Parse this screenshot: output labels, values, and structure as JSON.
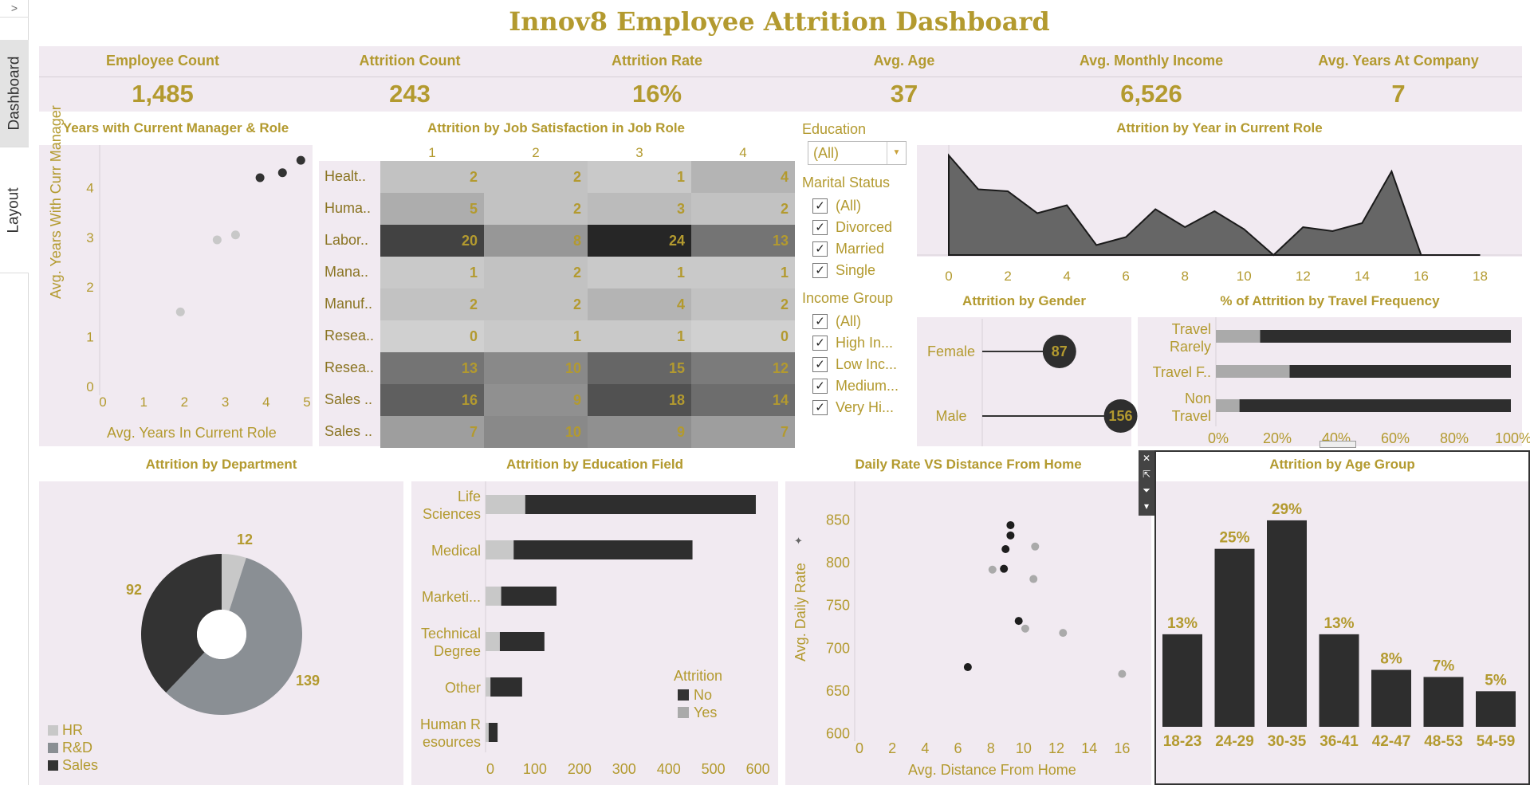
{
  "sidebar": {
    "toggle": ">",
    "tabs": [
      "Dashboard",
      "Layout"
    ]
  },
  "title": "Innov8 Employee Attrition Dashboard",
  "kpis": [
    {
      "label": "Employee Count",
      "value": "1,485"
    },
    {
      "label": "Attrition Count",
      "value": "243"
    },
    {
      "label": "Attrition Rate",
      "value": "16%"
    },
    {
      "label": "Avg. Age",
      "value": "37"
    },
    {
      "label": "Avg. Monthly Income",
      "value": "6,526"
    },
    {
      "label": "Avg. Years At Company",
      "value": "7"
    }
  ],
  "filters": {
    "education": {
      "title": "Education",
      "selected": "(All)"
    },
    "marital": {
      "title": "Marital Status",
      "options": [
        "(All)",
        "Divorced",
        "Married",
        "Single"
      ]
    },
    "income": {
      "title": "Income Group",
      "options": [
        "(All)",
        "High In...",
        "Low Inc...",
        "Medium...",
        "Very Hi..."
      ]
    }
  },
  "colors": {
    "dark": "#333333",
    "mid": "#8a8f94",
    "light": "#c8c8c8",
    "accent": "#b39a2f",
    "panel": "#f1eaf1"
  },
  "chart_data": [
    {
      "id": "manager_role",
      "type": "scatter",
      "title": "Years with Current Manager & Role",
      "xlabel": "Avg. Years In Current Role",
      "ylabel": "Avg. Years With Curr Manager",
      "xlim": [
        0,
        5
      ],
      "ylim": [
        0,
        4.6
      ],
      "xticks": [
        "0",
        "1",
        "2",
        "3",
        "4",
        "5"
      ],
      "yticks": [
        "0",
        "1",
        "2",
        "3",
        "4"
      ],
      "points": [
        {
          "x": 1.9,
          "y": 1.5,
          "shade": "light"
        },
        {
          "x": 2.8,
          "y": 2.95,
          "shade": "light"
        },
        {
          "x": 3.25,
          "y": 3.05,
          "shade": "light"
        },
        {
          "x": 3.85,
          "y": 4.2,
          "shade": "dark"
        },
        {
          "x": 4.4,
          "y": 4.3,
          "shade": "dark"
        },
        {
          "x": 4.85,
          "y": 4.55,
          "shade": "dark"
        }
      ]
    },
    {
      "id": "job_satisfaction",
      "type": "heatmap",
      "title": "Attrition by Job Satisfaction in Job Role",
      "columns": [
        "1",
        "2",
        "3",
        "4"
      ],
      "rows": [
        "Healt..",
        "Huma..",
        "Labor..",
        "Mana..",
        "Manuf..",
        "Resea..",
        "Resea..",
        "Sales ..",
        "Sales .."
      ],
      "values": [
        [
          2,
          2,
          1,
          4
        ],
        [
          5,
          2,
          3,
          2
        ],
        [
          20,
          8,
          24,
          13
        ],
        [
          1,
          2,
          1,
          1
        ],
        [
          2,
          2,
          4,
          2
        ],
        [
          0,
          1,
          1,
          0
        ],
        [
          13,
          10,
          15,
          12
        ],
        [
          16,
          9,
          18,
          14
        ],
        [
          7,
          10,
          9,
          7
        ]
      ]
    },
    {
      "id": "current_role_year",
      "type": "area",
      "title": "Attrition by Year in Current Role",
      "xlim": [
        0,
        18.5
      ],
      "ylim": [
        0,
        52
      ],
      "xticks": [
        "0",
        "2",
        "4",
        "6",
        "8",
        "10",
        "12",
        "14",
        "16",
        "18"
      ],
      "x": [
        0,
        1,
        2,
        3,
        4,
        5,
        6,
        7,
        8,
        9,
        10,
        11,
        12,
        13,
        14,
        15,
        16,
        17,
        18
      ],
      "values": [
        50,
        33,
        32,
        21,
        25,
        5,
        9,
        23,
        14,
        22,
        13,
        0,
        14,
        12,
        16,
        42,
        0,
        0,
        0
      ]
    },
    {
      "id": "gender",
      "type": "bar",
      "title": "Attrition by Gender",
      "categories": [
        "Female",
        "Male"
      ],
      "values": [
        87,
        156
      ],
      "xlim": [
        0,
        160
      ]
    },
    {
      "id": "travel",
      "type": "bar",
      "title": "% of Attrition by Travel Frequency",
      "categories": [
        "Travel Rarely",
        "Travel F..",
        "Non Travel"
      ],
      "series": [
        {
          "name": "Yes",
          "values": [
            15,
            25,
            8
          ]
        },
        {
          "name": "No",
          "values": [
            85,
            75,
            92
          ]
        }
      ],
      "xticks": [
        "0%",
        "20%",
        "40%",
        "60%",
        "80%",
        "100%"
      ]
    },
    {
      "id": "department",
      "type": "pie",
      "title": "Attrition by Department",
      "categories": [
        "HR",
        "R&D",
        "Sales"
      ],
      "values": [
        12,
        139,
        92
      ],
      "legend": "bottom-left"
    },
    {
      "id": "education_field",
      "type": "bar",
      "title": "Attrition by Education Field",
      "categories": [
        "Life Sciences",
        "Medical",
        "Marketi...",
        "Technical Degree",
        "Other",
        "Human R esources"
      ],
      "series": [
        {
          "name": "Yes",
          "values": [
            89,
            63,
            35,
            32,
            11,
            7
          ]
        },
        {
          "name": "No",
          "values": [
            517,
            401,
            124,
            100,
            71,
            20
          ]
        }
      ],
      "xlim": [
        0,
        640
      ],
      "xticks": [
        "0",
        "100",
        "200",
        "300",
        "400",
        "500",
        "600"
      ],
      "legend_title": "Attrition",
      "legend": [
        "No",
        "Yes"
      ]
    },
    {
      "id": "daily_rate",
      "type": "scatter",
      "title": "Daily Rate VS Distance From Home",
      "xlabel": "Avg. Distance From Home",
      "ylabel": "Avg. Daily Rate",
      "xlim": [
        0,
        17
      ],
      "ylim": [
        595,
        870
      ],
      "xticks": [
        "0",
        "2",
        "4",
        "6",
        "8",
        "10",
        "12",
        "14",
        "16"
      ],
      "yticks": [
        "600",
        "650",
        "700",
        "750",
        "800",
        "850"
      ],
      "points": [
        {
          "x": 9.2,
          "y": 843,
          "shade": "dark"
        },
        {
          "x": 9.2,
          "y": 831,
          "shade": "dark"
        },
        {
          "x": 8.9,
          "y": 815,
          "shade": "dark"
        },
        {
          "x": 8.8,
          "y": 792,
          "shade": "dark"
        },
        {
          "x": 9.7,
          "y": 731,
          "shade": "dark"
        },
        {
          "x": 6.6,
          "y": 677,
          "shade": "dark"
        },
        {
          "x": 10.7,
          "y": 818,
          "shade": "light"
        },
        {
          "x": 8.1,
          "y": 791,
          "shade": "light"
        },
        {
          "x": 10.6,
          "y": 780,
          "shade": "light"
        },
        {
          "x": 10.1,
          "y": 722,
          "shade": "light"
        },
        {
          "x": 12.4,
          "y": 717,
          "shade": "light"
        },
        {
          "x": 16.0,
          "y": 669,
          "shade": "light"
        }
      ]
    },
    {
      "id": "age_group",
      "type": "bar",
      "title": "Attrition by Age Group",
      "categories": [
        "18-23",
        "24-29",
        "30-35",
        "36-41",
        "42-47",
        "48-53",
        "54-59"
      ],
      "values": [
        13,
        25,
        29,
        13,
        8,
        7,
        5
      ],
      "labels": [
        "13%",
        "25%",
        "29%",
        "13%",
        "8%",
        "7%",
        "5%"
      ],
      "ylim": [
        0,
        30
      ]
    }
  ]
}
